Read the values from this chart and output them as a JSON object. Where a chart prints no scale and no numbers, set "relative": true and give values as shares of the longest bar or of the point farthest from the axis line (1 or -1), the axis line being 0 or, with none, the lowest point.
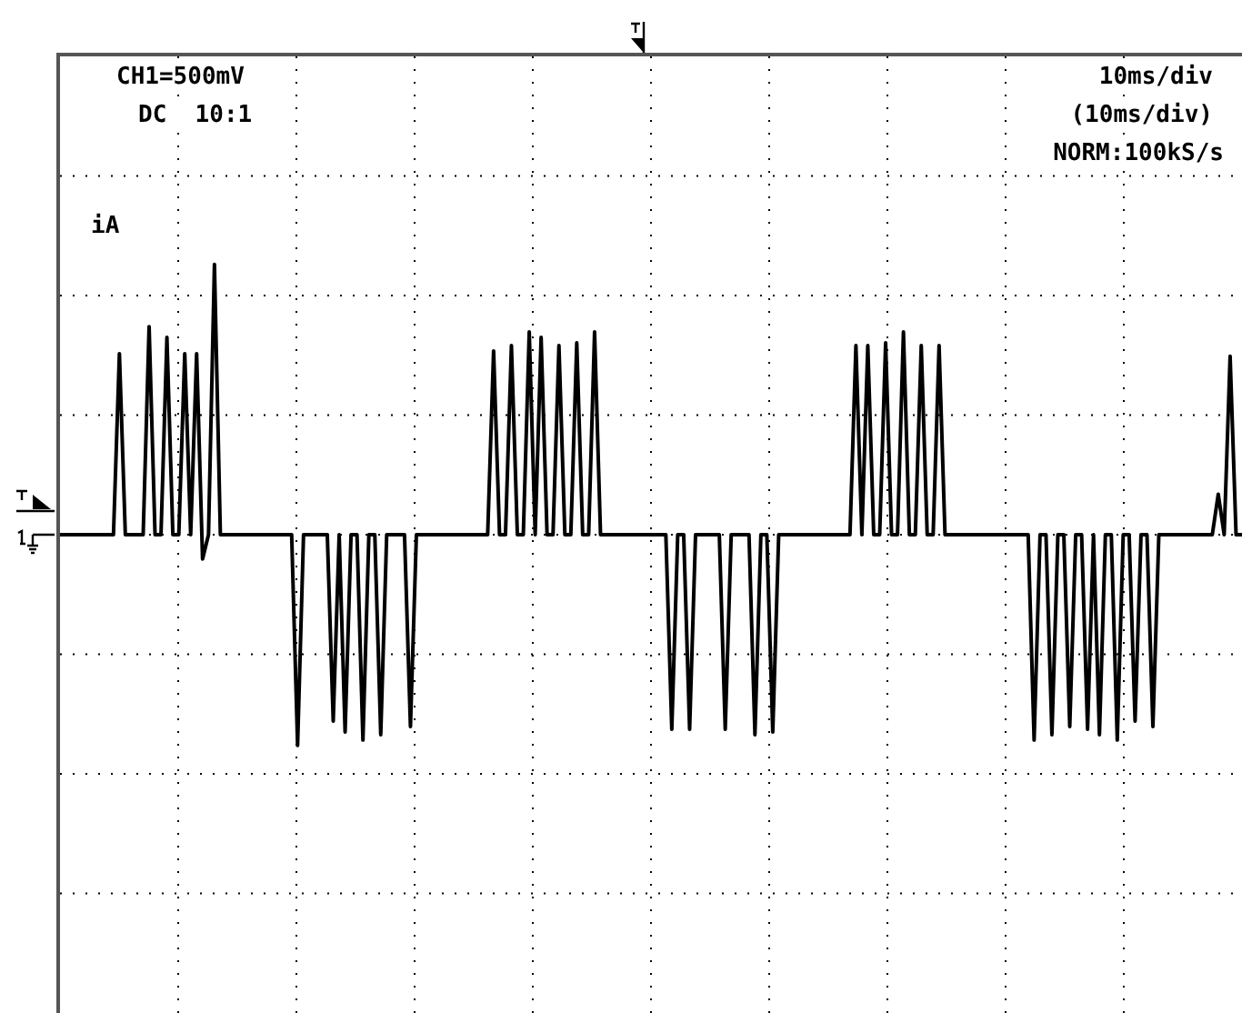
{
  "chart_data": {
    "type": "line",
    "relative": true,
    "grid": true,
    "tick_labels": false,
    "marker": "none",
    "line_style": "solid",
    "annotations": [
      "CH1=500mV",
      "DC  10:1",
      "10ms/div",
      "(10ms/div)",
      "NORM:100kS/s",
      "iA"
    ],
    "categories": [
      null,
      null,
      null,
      null,
      null,
      null,
      null,
      null,
      null,
      null,
      null,
      null,
      null,
      null,
      null,
      null,
      null,
      null,
      null,
      null,
      null,
      null,
      null,
      null,
      null,
      null,
      null,
      null,
      null,
      null,
      null,
      null,
      null,
      null,
      null,
      null,
      null,
      null,
      null,
      null,
      null,
      null,
      null,
      null,
      null,
      null,
      null,
      null,
      null,
      null,
      null,
      null,
      null,
      null,
      null,
      null,
      null,
      null,
      null,
      null,
      null,
      null,
      null,
      null,
      null,
      null,
      null,
      null,
      null,
      null,
      null,
      null,
      null,
      null,
      null,
      null,
      null,
      null,
      null,
      null,
      null,
      null,
      null,
      null,
      null,
      null,
      null,
      null,
      null,
      null,
      null,
      null,
      null,
      null,
      null,
      null,
      null,
      null,
      null,
      null,
      null,
      null,
      null,
      null,
      null,
      null,
      null,
      null,
      null,
      null,
      null,
      null,
      null,
      null,
      null,
      null,
      null,
      null,
      null,
      null,
      null,
      null,
      null,
      null,
      null,
      null,
      null,
      null,
      null,
      null,
      null,
      null,
      null,
      null,
      null,
      null,
      null,
      null,
      null,
      null,
      null,
      null,
      null,
      null,
      null,
      null,
      null,
      null,
      null,
      null,
      null,
      null,
      null,
      null,
      null,
      null,
      null,
      null,
      null,
      null,
      null,
      null,
      null,
      null,
      null,
      null,
      null,
      null,
      null,
      null,
      null,
      null,
      null,
      null,
      null,
      null,
      null,
      null,
      null,
      null,
      null,
      null,
      null,
      null,
      null,
      null,
      null,
      null,
      null,
      null,
      null,
      null,
      null,
      null,
      null,
      null,
      null,
      null,
      null,
      null
    ],
    "series": [
      {
        "color": "#000000",
        "values": [
          0,
          0,
          0,
          0,
          0,
          0,
          0,
          0,
          0,
          0,
          0.67,
          0,
          0,
          0,
          0,
          0.77,
          0,
          0,
          0.73,
          0,
          0,
          0.67,
          0,
          0.67,
          -0.09,
          0,
          1,
          0,
          0,
          0,
          0,
          0,
          0,
          0,
          0,
          0,
          0,
          0,
          0,
          0,
          -0.78,
          0,
          0,
          0,
          0,
          0,
          -0.69,
          0,
          -0.73,
          0,
          0,
          -0.76,
          0,
          0,
          -0.74,
          0,
          0,
          0,
          0,
          -0.71,
          0,
          0,
          0,
          0,
          0,
          0,
          0,
          0,
          0,
          0,
          0,
          0,
          0,
          0.68,
          0,
          0,
          0.7,
          0,
          0,
          0.75,
          0,
          0.73,
          0,
          0,
          0.7,
          0,
          0,
          0.71,
          0,
          0,
          0.75,
          0,
          0,
          0,
          0,
          0,
          0,
          0,
          0,
          0,
          0,
          0,
          0,
          -0.72,
          0,
          0,
          -0.72,
          0,
          0,
          0,
          0,
          0,
          -0.72,
          0,
          0,
          0,
          0,
          -0.74,
          0,
          0,
          -0.73,
          0,
          0,
          0,
          0,
          0,
          0,
          0,
          0,
          0,
          0,
          0,
          0,
          0,
          0.7,
          0,
          0.7,
          0,
          0,
          0.71,
          0,
          0,
          0.75,
          0,
          0,
          0.7,
          0,
          0,
          0.7,
          0,
          0,
          0,
          0,
          0,
          0,
          0,
          0,
          0,
          0,
          0,
          0,
          0,
          0,
          0,
          -0.76,
          0,
          0,
          -0.74,
          0,
          0,
          -0.71,
          0,
          0,
          -0.72,
          0,
          -0.74,
          0,
          0,
          -0.76,
          0,
          0,
          -0.69,
          0,
          0,
          -0.71,
          0,
          0,
          0,
          0,
          0,
          0,
          0,
          0,
          0,
          0,
          0.15,
          0,
          0.66,
          0,
          0
        ]
      }
    ]
  }
}
